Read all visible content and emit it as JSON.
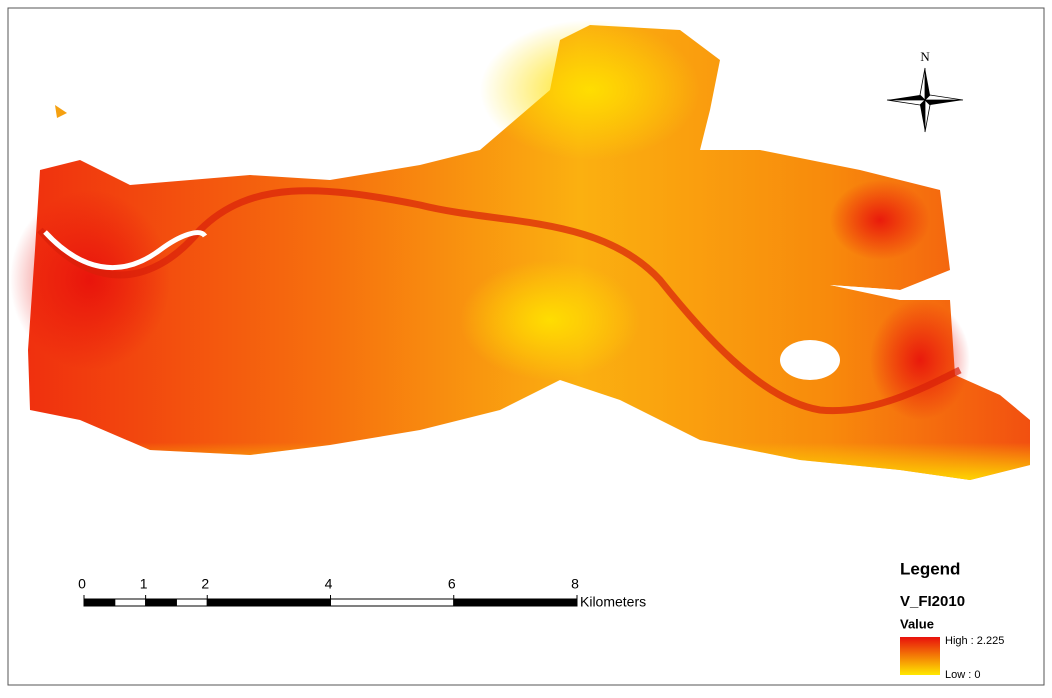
{
  "north_arrow": {
    "label": "N"
  },
  "scale_bar": {
    "ticks": [
      0,
      1,
      2,
      4,
      6,
      8
    ],
    "unit": "Kilometers"
  },
  "legend": {
    "title": "Legend",
    "layer": "V_FI2010",
    "field": "Value",
    "high": "High : 2.225",
    "low": "Low : 0"
  }
}
